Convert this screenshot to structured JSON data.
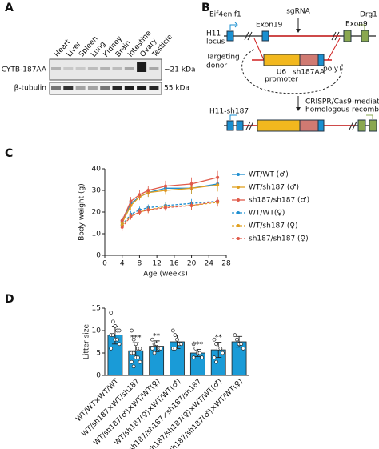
{
  "panel_labels": [
    "A",
    "B",
    "C",
    "D"
  ],
  "blot": {
    "lanes": [
      "Heart",
      "Liver",
      "Spleen",
      "Lung",
      "Kidney",
      "Brain",
      "Intestine",
      "Ovary",
      "Testicle"
    ],
    "rows": [
      "CYTB-187AA",
      "β-tubulin"
    ],
    "sizes": [
      "~21 kDa",
      "55 kDa"
    ]
  },
  "diagram": {
    "gene_left": "Eif4enif1",
    "exon_left": "Exon19",
    "guide": "sgRNA",
    "exon_right": "Exon9",
    "gene_right": "Drg1",
    "locus_label": [
      "H11",
      "locus"
    ],
    "donor_label": [
      "Targeting",
      "donor"
    ],
    "promoter": [
      "U6",
      "promoter"
    ],
    "insert": "sh187AA",
    "terminator": "polyT",
    "method": [
      "CRISPR/Cas9-mediated",
      "homologous recombination"
    ],
    "result": "H11-sh187"
  },
  "chart_data": [
    {
      "type": "line",
      "x_label": "Age (weeks)",
      "y_label": "Body weight (g)",
      "x": [
        4,
        6,
        8,
        10,
        14,
        20,
        26
      ],
      "xlim": [
        0,
        28
      ],
      "xticks": [
        0,
        4,
        8,
        12,
        16,
        20,
        24,
        28
      ],
      "ylim": [
        0,
        40
      ],
      "yticks": [
        0,
        10,
        20,
        30,
        40
      ],
      "series": [
        {
          "name": "WT/WT (♂)",
          "color": "#1f8fd0",
          "dashed": false,
          "values": [
            16,
            24,
            27,
            29,
            31,
            31,
            33
          ],
          "errors": [
            2,
            2,
            1.5,
            2,
            2,
            2.5,
            2.5
          ]
        },
        {
          "name": "WT/sh187 (♂)",
          "color": "#e0a020",
          "dashed": false,
          "values": [
            15,
            23,
            27,
            29,
            30,
            31,
            32.5
          ],
          "errors": [
            2,
            2,
            1.5,
            2,
            2,
            2.5,
            3
          ]
        },
        {
          "name": "sh187/sh187 (♂)",
          "color": "#e05a4a",
          "dashed": false,
          "values": [
            16,
            25,
            28,
            30,
            32,
            33,
            36
          ],
          "errors": [
            2,
            2,
            2,
            2,
            2.5,
            3,
            3
          ]
        },
        {
          "name": "WT/WT(♀)",
          "color": "#1f8fd0",
          "dashed": true,
          "values": [
            14,
            19,
            21,
            22,
            23,
            24,
            25
          ],
          "errors": [
            1.5,
            1.5,
            1.5,
            1.5,
            1.5,
            2,
            2
          ]
        },
        {
          "name": "WT/sh187 (♀)",
          "color": "#e0a020",
          "dashed": true,
          "values": [
            14,
            18,
            20,
            21,
            22.5,
            23,
            24.5
          ],
          "errors": [
            1.5,
            1.5,
            1.5,
            1.5,
            1.5,
            2,
            2
          ]
        },
        {
          "name": "sh187/sh187 (♀)",
          "color": "#e05a4a",
          "dashed": true,
          "values": [
            13,
            18,
            20,
            21,
            22,
            23,
            25
          ],
          "errors": [
            1.5,
            1.5,
            1.5,
            1.5,
            1.5,
            2,
            2
          ]
        }
      ]
    },
    {
      "type": "bar",
      "y_label": "Litter size",
      "categories": [
        "WT/WT×WT/WT",
        "WT/sh187×WT/sh187",
        "WT/sh187(♂)×WT/WT(♀)",
        "WT/sh187(♀)×WT/WT(♂)",
        "sh187/sh187×sh187/sh187",
        "sh187/sh187(♀)×WT/WT(♂)",
        "sh187/sh187(♂)×WT/WT(♀)"
      ],
      "values": [
        9,
        5.5,
        6.5,
        7.5,
        5,
        5.7,
        7.5
      ],
      "errors": [
        2,
        1.8,
        1.2,
        1.5,
        0.8,
        1.7,
        1.2
      ],
      "points": [
        [
          14,
          12,
          11,
          10,
          10,
          9,
          9,
          8,
          8,
          7,
          6
        ],
        [
          10,
          8,
          7,
          6,
          6,
          5,
          5,
          4,
          4,
          3,
          3,
          2
        ],
        [
          8,
          7,
          7,
          6,
          6,
          6,
          5
        ],
        [
          10,
          9,
          8,
          7,
          7,
          6,
          6
        ],
        [
          7,
          6,
          5,
          5,
          4,
          4
        ],
        [
          8,
          7,
          6,
          6,
          5,
          4,
          3
        ],
        [
          9,
          8,
          7,
          7,
          6
        ]
      ],
      "significance": [
        null,
        "***",
        "**",
        null,
        "***",
        "**",
        null
      ],
      "color": "#1a9bd7",
      "ylim": [
        0,
        15
      ],
      "yticks": [
        0,
        5,
        10,
        15
      ]
    }
  ]
}
